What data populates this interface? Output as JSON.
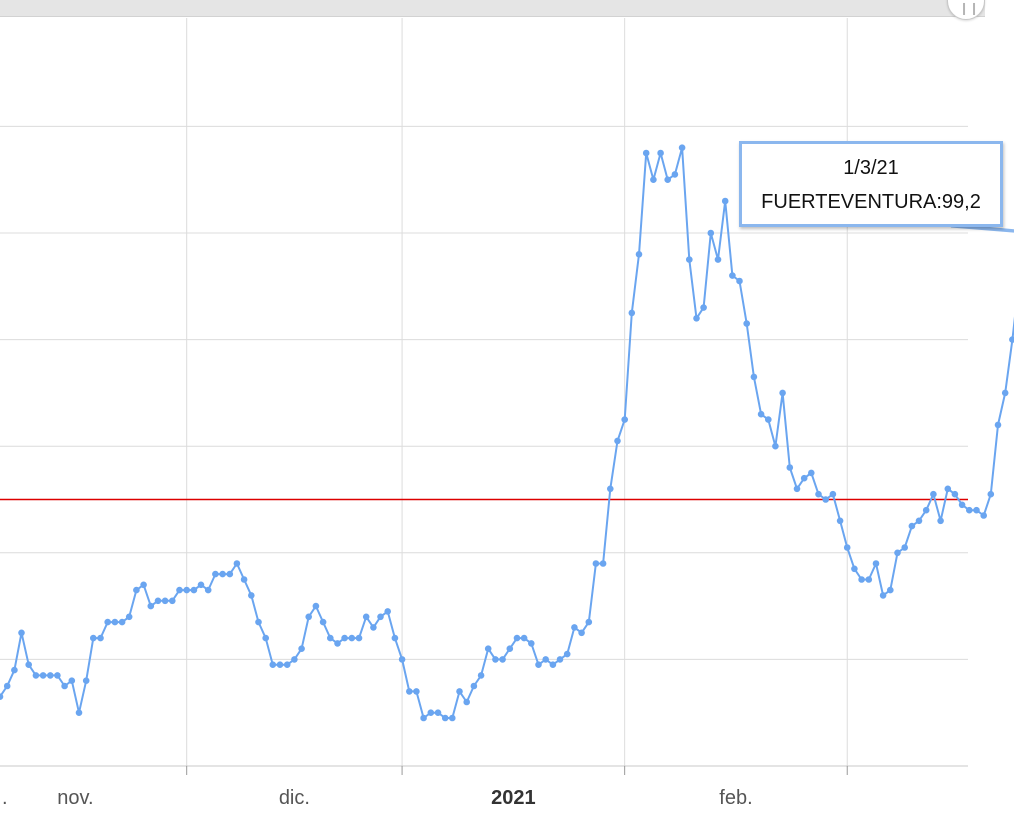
{
  "chart_data": {
    "type": "line",
    "title": "",
    "xlabel": "",
    "ylabel": "",
    "x_tick_labels": [
      ".",
      "nov.",
      "dic.",
      "2021",
      "feb."
    ],
    "x_start": "2020-10-06",
    "x_end": "2021-03-01",
    "ylim": [
      0,
      130
    ],
    "y_gridlines": [
      20,
      40,
      60,
      80,
      100,
      120
    ],
    "reference_line": {
      "value": 50,
      "color": "#dd0000"
    },
    "grid": true,
    "legend": "none",
    "series": [
      {
        "name": "FUERTEVENTURA",
        "color": "#6aa5f0",
        "x_start": "2020-10-06",
        "x_step_days": 1,
        "values": [
          13,
          15,
          18,
          25,
          19,
          17,
          17,
          17,
          17,
          15,
          16,
          10,
          16,
          24,
          24,
          27,
          27,
          27,
          28,
          33,
          34,
          30,
          31,
          31,
          31,
          33,
          33,
          33,
          34,
          33,
          36,
          36,
          36,
          38,
          35,
          32,
          27,
          24,
          19,
          19,
          19,
          20,
          22,
          28,
          30,
          27,
          24,
          23,
          24,
          24,
          24,
          28,
          26,
          28,
          29,
          24,
          20,
          14,
          14,
          9,
          10,
          10,
          9,
          9,
          14,
          12,
          15,
          17,
          22,
          20,
          20,
          22,
          24,
          24,
          23,
          19,
          20,
          19,
          20,
          21,
          26,
          25,
          27,
          38,
          38,
          52,
          61,
          65,
          85,
          96,
          115,
          110,
          115,
          110,
          111,
          116,
          95,
          84,
          86,
          100,
          95,
          106,
          92,
          91,
          83,
          73,
          66,
          65,
          60,
          70,
          56,
          52,
          54,
          55,
          51,
          50,
          51,
          46,
          41,
          37,
          35,
          35,
          38,
          32,
          33,
          40,
          41,
          45,
          46,
          48,
          51,
          46,
          52,
          51,
          49,
          48,
          48,
          47,
          51,
          64,
          70,
          80,
          92,
          97,
          97,
          99.2
        ]
      }
    ],
    "tooltip": {
      "date": "1/3/21",
      "text": "FUERTEVENTURA:99,2"
    }
  }
}
